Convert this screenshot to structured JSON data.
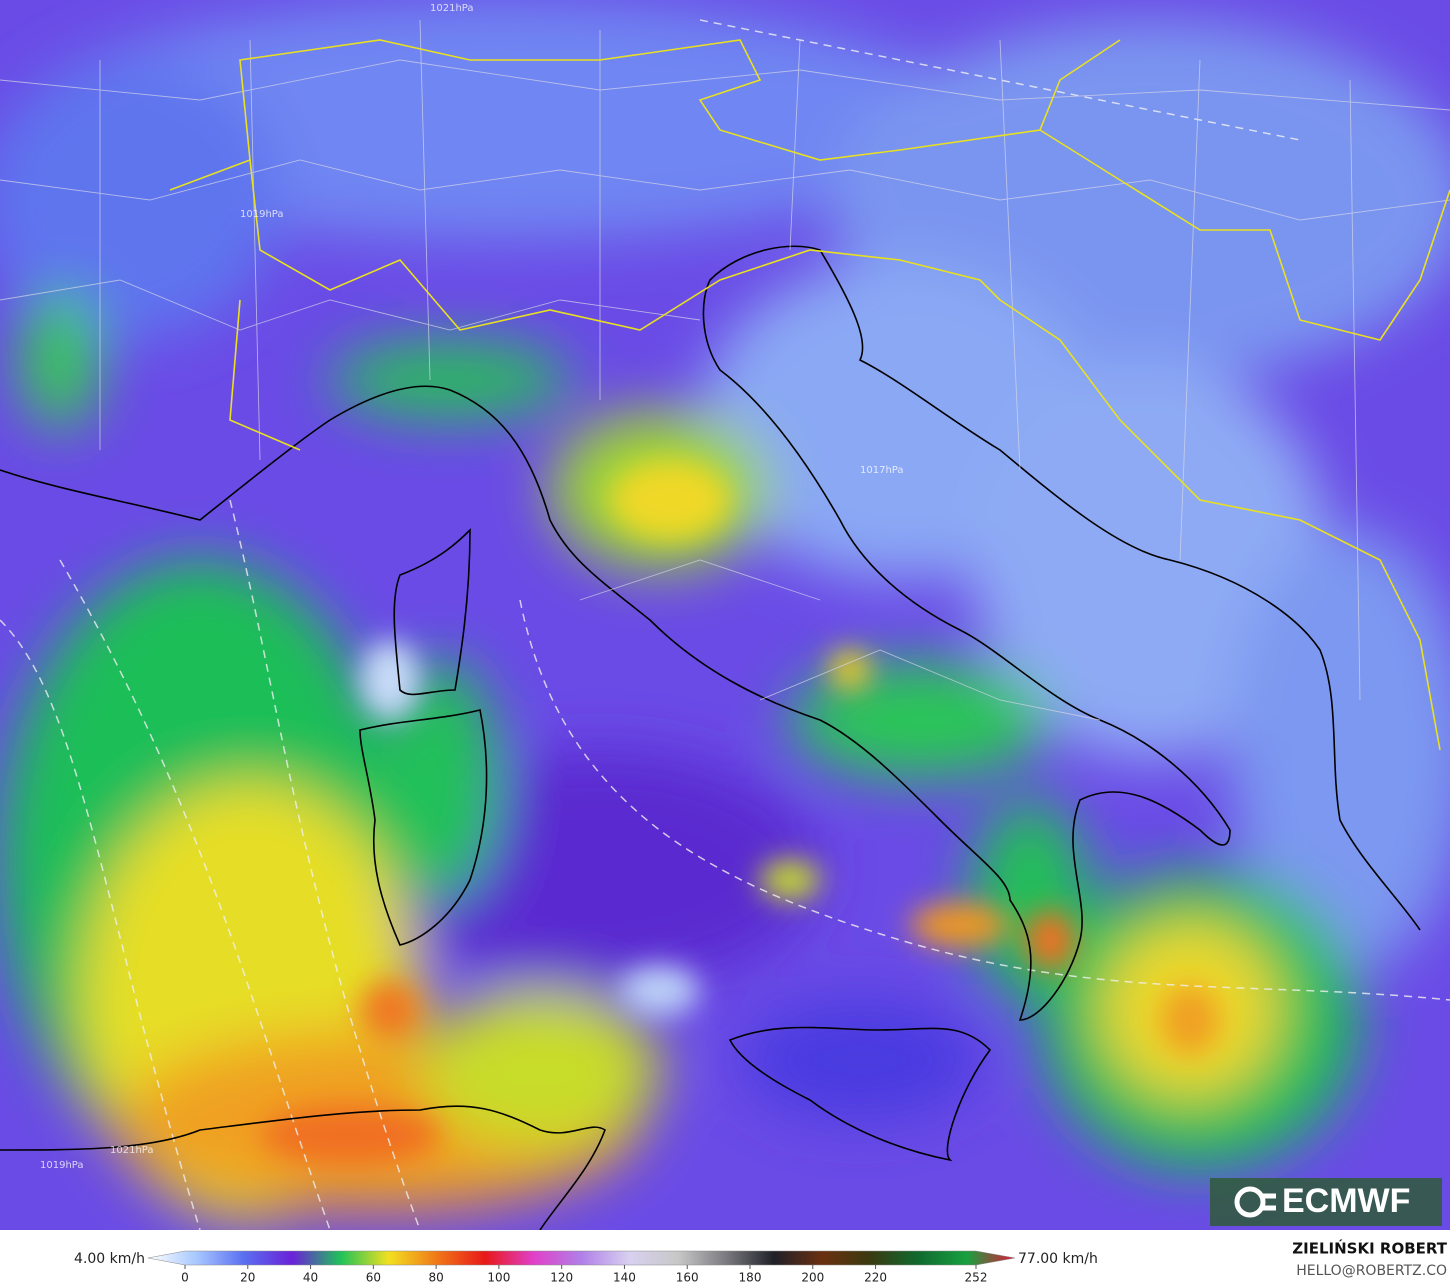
{
  "legend": {
    "min_label": "4.00 km/h",
    "max_label": "77.00 km/h",
    "ticks": [
      0,
      20,
      40,
      60,
      80,
      100,
      120,
      140,
      160,
      180,
      200,
      220,
      252
    ],
    "colors": [
      "#ffffff",
      "#a8c8ff",
      "#5a6ef0",
      "#6a22d8",
      "#1fc25a",
      "#f2e020",
      "#f07818",
      "#e81818",
      "#e040c8",
      "#b080e8",
      "#d8d0f0",
      "#c8c8c8",
      "#7a7a80",
      "#202028",
      "#6a3010",
      "#3a3a10",
      "#106a30",
      "#18a040",
      "#e01838"
    ]
  },
  "isobars": [
    "1021hPa",
    "1019hPa",
    "1017hPa",
    "1021hPa",
    "1019hPa"
  ],
  "logo": "ECMWF",
  "credit": {
    "name": "ZIELIŃSKI ROBERT",
    "email": "HELLO@ROBERTZ.CO"
  }
}
